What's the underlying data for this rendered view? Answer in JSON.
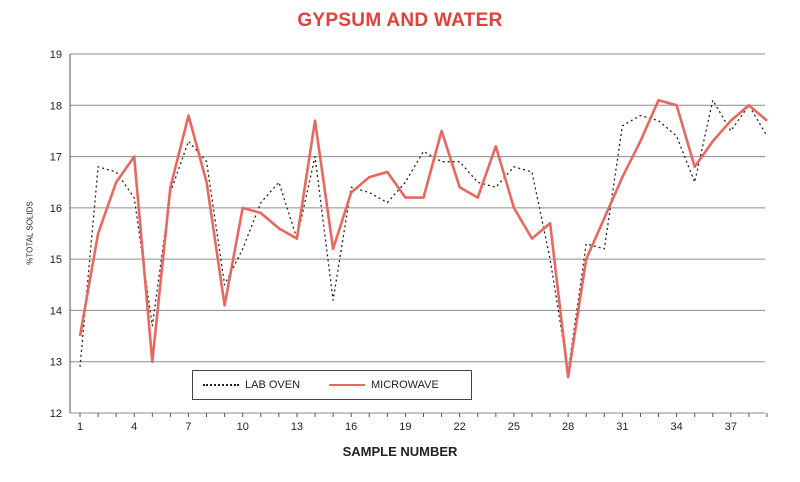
{
  "chart_data": {
    "type": "line",
    "title": "GYPSUM AND WATER",
    "xlabel": "SAMPLE NUMBER",
    "ylabel": "%TOTAL SOLIDS",
    "xlim": [
      1,
      39
    ],
    "ylim": [
      12,
      19
    ],
    "x_ticks": [
      "1",
      "4",
      "7",
      "10",
      "13",
      "16",
      "19",
      "22",
      "25",
      "28",
      "31",
      "34",
      "37"
    ],
    "y_ticks": [
      "12",
      "13",
      "14",
      "15",
      "16",
      "17",
      "18",
      "19"
    ],
    "grid": "horizontal",
    "legend_position": "bottom-left",
    "x": [
      1,
      2,
      3,
      4,
      5,
      6,
      7,
      8,
      9,
      10,
      11,
      12,
      13,
      14,
      15,
      16,
      17,
      18,
      19,
      20,
      21,
      22,
      23,
      24,
      25,
      26,
      27,
      28,
      29,
      30,
      31,
      32,
      33,
      34,
      35,
      36,
      37,
      38,
      39
    ],
    "series": [
      {
        "name": "LAB OVEN",
        "style": "dotted",
        "color": "#222222",
        "values": [
          12.9,
          16.8,
          16.7,
          16.2,
          13.7,
          16.3,
          17.3,
          16.9,
          14.5,
          15.2,
          16.1,
          16.5,
          15.4,
          17.0,
          14.2,
          16.4,
          16.3,
          16.1,
          16.5,
          17.1,
          16.9,
          16.9,
          16.5,
          16.4,
          16.8,
          16.7,
          15.0,
          12.8,
          15.3,
          15.2,
          17.6,
          17.8,
          17.7,
          17.4,
          16.5,
          18.1,
          17.5,
          18.0,
          17.4
        ]
      },
      {
        "name": "MICROWAVE",
        "style": "solid",
        "color": "#e8675f",
        "values": [
          13.5,
          15.5,
          16.5,
          17.0,
          13.0,
          16.4,
          17.8,
          16.5,
          14.1,
          16.0,
          15.9,
          15.6,
          15.4,
          17.7,
          15.2,
          16.3,
          16.6,
          16.7,
          16.2,
          16.2,
          17.5,
          16.4,
          16.2,
          17.2,
          16.0,
          15.4,
          15.7,
          12.7,
          15.0,
          15.8,
          16.6,
          17.3,
          18.1,
          18.0,
          16.8,
          17.3,
          17.7,
          18.0,
          17.7
        ]
      }
    ]
  }
}
